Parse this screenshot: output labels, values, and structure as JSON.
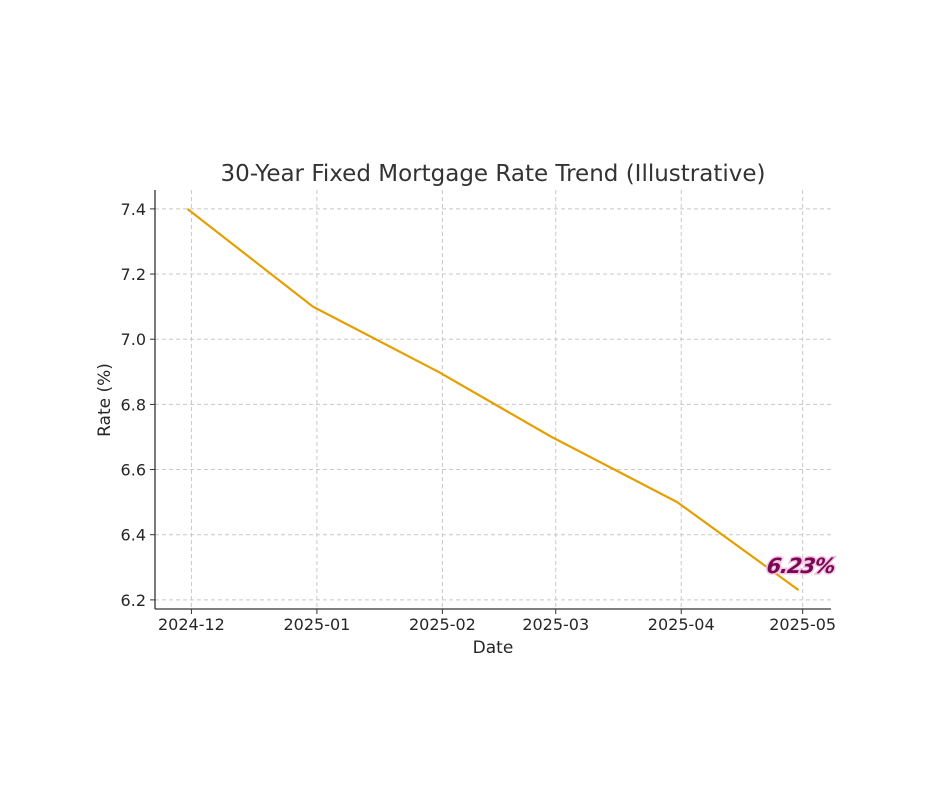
{
  "chart_data": {
    "type": "line",
    "title": "30-Year Fixed Mortgage Rate Trend (Illustrative)",
    "xlabel": "Date",
    "ylabel": "Rate (%)",
    "x": [
      "2024-11-30",
      "2024-12-31",
      "2025-01-31",
      "2025-02-28",
      "2025-03-31",
      "2025-04-30"
    ],
    "series": [
      {
        "name": "Rate",
        "values": [
          7.4,
          7.1,
          6.9,
          6.7,
          6.5,
          6.23
        ],
        "color": "#E69F00"
      }
    ],
    "xlim": [
      "2024-11-22",
      "2025-05-08"
    ],
    "ylim": [
      6.172,
      7.458
    ],
    "xticks": [
      "2024-12",
      "2025-01",
      "2025-02",
      "2025-03",
      "2025-04",
      "2025-05"
    ],
    "xtick_dates": [
      "2024-12-01",
      "2025-01-01",
      "2025-02-01",
      "2025-03-01",
      "2025-04-01",
      "2025-05-01"
    ],
    "yticks": [
      "6.2",
      "6.4",
      "6.6",
      "6.8",
      "7.0",
      "7.2",
      "7.4"
    ],
    "grid": true,
    "annotation": {
      "text": "6.23%",
      "color": "#7a0a4f"
    }
  }
}
